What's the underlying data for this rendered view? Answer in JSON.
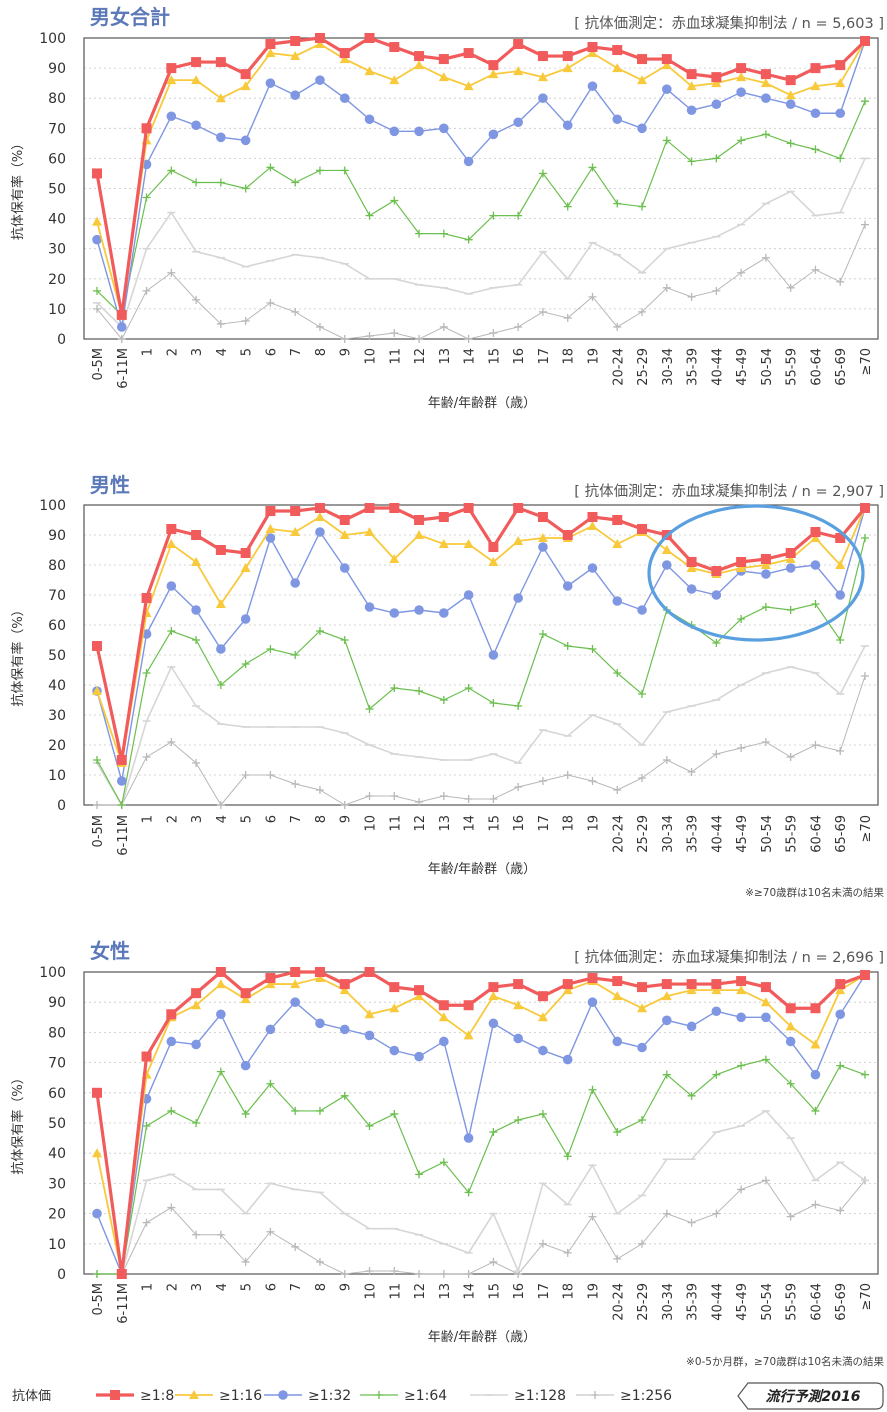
{
  "chart_data": [
    {
      "type": "line",
      "title": "男女合計",
      "method_note": "[ 抗体価測定：赤血球凝集抑制法 / n = 5,603 ]",
      "xlabel": "年齢/年齢群（歳）",
      "ylabel": "抗体保有率（%）",
      "ylim": [
        0,
        100
      ],
      "yticks": [
        0,
        10,
        20,
        30,
        40,
        50,
        60,
        70,
        80,
        90,
        100
      ],
      "grid": "horizontal dotted",
      "categories": [
        "0-5M",
        "6-11M",
        "1",
        "2",
        "3",
        "4",
        "5",
        "6",
        "7",
        "8",
        "9",
        "10",
        "11",
        "12",
        "13",
        "14",
        "15",
        "16",
        "17",
        "18",
        "19",
        "20-24",
        "25-29",
        "30-34",
        "35-39",
        "40-44",
        "45-49",
        "50-54",
        "55-59",
        "60-64",
        "65-69",
        "≥70"
      ],
      "series": [
        {
          "name": "≥1:8",
          "values": [
            55,
            8,
            70,
            90,
            92,
            92,
            88,
            98,
            99,
            100,
            95,
            100,
            97,
            94,
            93,
            95,
            91,
            98,
            94,
            94,
            97,
            96,
            93,
            93,
            88,
            87,
            90,
            88,
            86,
            90,
            91,
            99
          ]
        },
        {
          "name": "≥1:16",
          "values": [
            39,
            8,
            66,
            86,
            86,
            80,
            84,
            95,
            94,
            98,
            93,
            89,
            86,
            91,
            87,
            84,
            88,
            89,
            87,
            90,
            95,
            90,
            86,
            91,
            84,
            85,
            87,
            85,
            81,
            84,
            85,
            99
          ]
        },
        {
          "name": "≥1:32",
          "values": [
            33,
            4,
            58,
            74,
            71,
            67,
            66,
            85,
            81,
            86,
            80,
            73,
            69,
            69,
            70,
            59,
            68,
            72,
            80,
            71,
            84,
            73,
            70,
            83,
            76,
            78,
            82,
            80,
            78,
            75,
            75,
            99
          ]
        },
        {
          "name": "≥1:64",
          "values": [
            16,
            8,
            47,
            56,
            52,
            52,
            50,
            57,
            52,
            56,
            56,
            41,
            46,
            35,
            35,
            33,
            41,
            41,
            55,
            44,
            57,
            45,
            44,
            66,
            59,
            60,
            66,
            68,
            65,
            63,
            60,
            79
          ]
        },
        {
          "name": "≥1:128",
          "values": [
            12,
            4,
            30,
            42,
            29,
            27,
            24,
            26,
            28,
            27,
            25,
            20,
            20,
            18,
            17,
            15,
            17,
            18,
            29,
            20,
            32,
            28,
            22,
            30,
            32,
            34,
            38,
            45,
            49,
            41,
            42,
            60
          ]
        },
        {
          "name": "≥1:256",
          "values": [
            10,
            0,
            16,
            22,
            13,
            5,
            6,
            12,
            9,
            4,
            0,
            1,
            2,
            0,
            4,
            0,
            2,
            4,
            9,
            7,
            14,
            4,
            9,
            17,
            14,
            16,
            22,
            27,
            17,
            23,
            19,
            38
          ]
        }
      ]
    },
    {
      "type": "line",
      "title": "男性",
      "method_note": "[ 抗体価測定：赤血球凝集抑制法 / n = 2,907 ]",
      "xlabel": "年齢/年齢群（歳）",
      "ylabel": "抗体保有率（%）",
      "ylim": [
        0,
        100
      ],
      "yticks": [
        0,
        10,
        20,
        30,
        40,
        50,
        60,
        70,
        80,
        90,
        100
      ],
      "grid": "horizontal dotted",
      "annotation": "blue ellipse around age groups 30-34 to 65-69",
      "footnote": "※≥70歳群は10名未満の結果",
      "categories": [
        "0-5M",
        "6-11M",
        "1",
        "2",
        "3",
        "4",
        "5",
        "6",
        "7",
        "8",
        "9",
        "10",
        "11",
        "12",
        "13",
        "14",
        "15",
        "16",
        "17",
        "18",
        "19",
        "20-24",
        "25-29",
        "30-34",
        "35-39",
        "40-44",
        "45-49",
        "50-54",
        "55-59",
        "60-64",
        "65-69",
        "≥70"
      ],
      "series": [
        {
          "name": "≥1:8",
          "values": [
            53,
            15,
            69,
            92,
            90,
            85,
            84,
            98,
            98,
            99,
            95,
            99,
            99,
            95,
            96,
            99,
            86,
            99,
            96,
            90,
            96,
            95,
            92,
            90,
            81,
            78,
            81,
            82,
            84,
            91,
            89,
            99
          ]
        },
        {
          "name": "≥1:16",
          "values": [
            38,
            14,
            64,
            87,
            81,
            67,
            79,
            92,
            91,
            96,
            90,
            91,
            82,
            90,
            87,
            87,
            81,
            88,
            89,
            89,
            93,
            87,
            91,
            85,
            79,
            77,
            79,
            80,
            82,
            89,
            80,
            99
          ]
        },
        {
          "name": "≥1:32",
          "values": [
            38,
            8,
            57,
            73,
            65,
            52,
            62,
            89,
            74,
            91,
            79,
            66,
            64,
            65,
            64,
            70,
            50,
            69,
            86,
            73,
            79,
            68,
            65,
            80,
            72,
            70,
            78,
            77,
            79,
            80,
            70,
            99
          ]
        },
        {
          "name": "≥1:64",
          "values": [
            15,
            0,
            44,
            58,
            55,
            40,
            47,
            52,
            50,
            58,
            55,
            32,
            39,
            38,
            35,
            39,
            34,
            33,
            57,
            53,
            52,
            44,
            37,
            65,
            60,
            54,
            62,
            66,
            65,
            67,
            55,
            89
          ]
        },
        {
          "name": "≥1:128",
          "values": [
            14,
            0,
            28,
            46,
            33,
            27,
            26,
            26,
            26,
            26,
            24,
            20,
            17,
            16,
            15,
            15,
            17,
            14,
            25,
            23,
            30,
            27,
            20,
            31,
            33,
            35,
            40,
            44,
            46,
            44,
            37,
            53
          ]
        },
        {
          "name": "≥1:256",
          "values": [
            0,
            0,
            16,
            21,
            14,
            0,
            10,
            10,
            7,
            5,
            0,
            3,
            3,
            1,
            3,
            2,
            2,
            6,
            8,
            10,
            8,
            5,
            9,
            15,
            11,
            17,
            19,
            21,
            16,
            20,
            18,
            43
          ]
        }
      ]
    },
    {
      "type": "line",
      "title": "女性",
      "method_note": "[ 抗体価測定：赤血球凝集抑制法 / n = 2,696 ]",
      "xlabel": "年齢/年齢群（歳）",
      "ylabel": "抗体保有率（%）",
      "ylim": [
        0,
        100
      ],
      "yticks": [
        0,
        10,
        20,
        30,
        40,
        50,
        60,
        70,
        80,
        90,
        100
      ],
      "grid": "horizontal dotted",
      "footnote": "※0-5か月群，≥70歳群は10名未満の結果",
      "categories": [
        "0-5M",
        "6-11M",
        "1",
        "2",
        "3",
        "4",
        "5",
        "6",
        "7",
        "8",
        "9",
        "10",
        "11",
        "12",
        "13",
        "14",
        "15",
        "16",
        "17",
        "18",
        "19",
        "20-24",
        "25-29",
        "30-34",
        "35-39",
        "40-44",
        "45-49",
        "50-54",
        "55-59",
        "60-64",
        "65-69",
        "≥70"
      ],
      "series": [
        {
          "name": "≥1:8",
          "values": [
            60,
            0,
            72,
            86,
            93,
            100,
            93,
            98,
            100,
            100,
            96,
            100,
            95,
            94,
            89,
            89,
            95,
            96,
            92,
            96,
            98,
            97,
            95,
            96,
            96,
            96,
            97,
            95,
            88,
            88,
            96,
            99
          ]
        },
        {
          "name": "≥1:16",
          "values": [
            40,
            0,
            66,
            85,
            89,
            96,
            91,
            96,
            96,
            98,
            94,
            86,
            88,
            92,
            85,
            79,
            92,
            89,
            85,
            94,
            97,
            92,
            88,
            92,
            94,
            94,
            94,
            90,
            82,
            76,
            94,
            99
          ]
        },
        {
          "name": "≥1:32",
          "values": [
            20,
            0,
            58,
            77,
            76,
            86,
            69,
            81,
            90,
            83,
            81,
            79,
            74,
            72,
            77,
            45,
            83,
            78,
            74,
            71,
            90,
            77,
            75,
            84,
            82,
            87,
            85,
            85,
            77,
            66,
            86,
            99
          ]
        },
        {
          "name": "≥1:64",
          "values": [
            0,
            0,
            49,
            54,
            50,
            67,
            53,
            63,
            54,
            54,
            59,
            49,
            53,
            33,
            37,
            27,
            47,
            51,
            53,
            39,
            61,
            47,
            51,
            66,
            59,
            66,
            69,
            71,
            63,
            54,
            69,
            66
          ]
        },
        {
          "name": "≥1:128",
          "values": [
            0,
            0,
            31,
            33,
            28,
            28,
            20,
            30,
            28,
            27,
            20,
            15,
            15,
            13,
            10,
            7,
            20,
            1,
            30,
            23,
            36,
            20,
            26,
            38,
            38,
            47,
            49,
            54,
            45,
            31,
            37,
            31
          ]
        },
        {
          "name": "≥1:256",
          "values": [
            0,
            0,
            17,
            22,
            13,
            13,
            4,
            14,
            9,
            4,
            0,
            1,
            1,
            0,
            0,
            0,
            4,
            0,
            10,
            7,
            19,
            5,
            10,
            20,
            17,
            20,
            28,
            31,
            19,
            23,
            21,
            31
          ]
        }
      ]
    }
  ],
  "legend": {
    "title": "抗体価",
    "items": [
      {
        "label": "≥1:8",
        "color": "#f15b5b",
        "marker": "square"
      },
      {
        "label": "≥1:16",
        "color": "#f8c93b",
        "marker": "triangle"
      },
      {
        "label": "≥1:32",
        "color": "#7f96e2",
        "marker": "circle"
      },
      {
        "label": "≥1:64",
        "color": "#6bbf4e",
        "marker": "plus"
      },
      {
        "label": "≥1:128",
        "color": "#d6d6d6",
        "marker": "dash"
      },
      {
        "label": "≥1:256",
        "color": "#b8b8b8",
        "marker": "plus"
      }
    ]
  },
  "brand": "流行予測2016",
  "colors": {
    "title": "#5b79b8",
    "axis": "#555555",
    "grid": "#c8c8c8",
    "ellipse": "#5aa0e0"
  }
}
